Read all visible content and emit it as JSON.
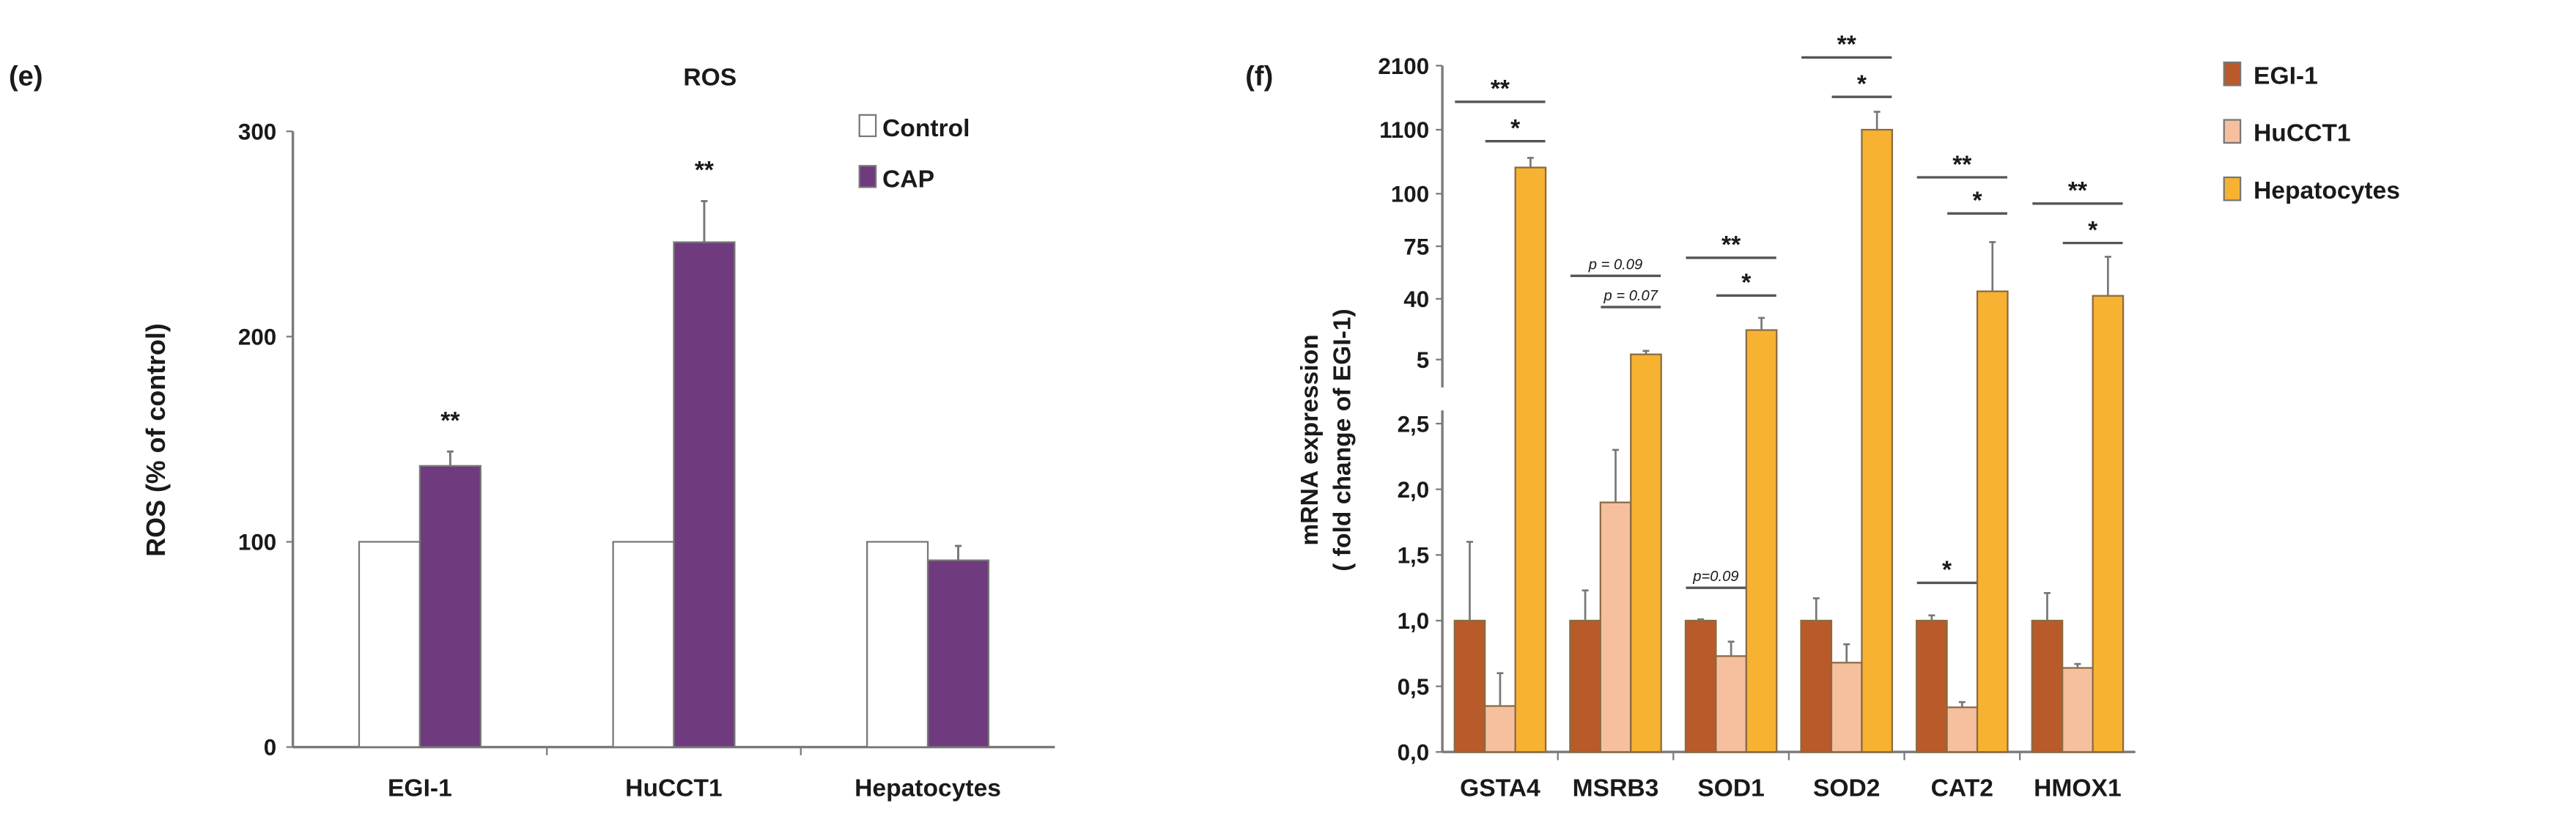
{
  "chart_data": [
    {
      "panel": "(e)",
      "type": "bar",
      "title": "ROS",
      "ylabel": "ROS (% of control)",
      "xlabel": "",
      "ylim": [
        0,
        300
      ],
      "yticks": [
        "0",
        "100",
        "200",
        "300"
      ],
      "categories": [
        "EGI-1",
        "HuCCT1",
        "Hepatocytes"
      ],
      "legend_position": "top-right",
      "series": [
        {
          "name": "Control",
          "color": "#ffffff",
          "values": [
            100,
            100,
            100
          ],
          "errors": [
            0,
            0,
            0
          ]
        },
        {
          "name": "CAP",
          "color": "#6f3a7e",
          "values": [
            137,
            246,
            91
          ],
          "errors": [
            7,
            20,
            7
          ]
        }
      ],
      "annotations": [
        "**",
        "**",
        ""
      ]
    },
    {
      "panel": "(f)",
      "type": "bar",
      "title": "",
      "ylabel": "mRNA expression",
      "ylabel2": "( fold change of EGI-1)",
      "xlabel": "",
      "axis_break": true,
      "yticks_lower": [
        "0,0",
        "0,5",
        "1,0",
        "1,5",
        "2,0",
        "2,5"
      ],
      "yticks_upper": [
        "5",
        "40",
        "75",
        "100",
        "1100",
        "2100"
      ],
      "categories": [
        "GSTA4",
        "MSRB3",
        "SOD1",
        "SOD2",
        "CAT2",
        "HMOX1"
      ],
      "legend_position": "top-right",
      "series": [
        {
          "name": "EGI-1",
          "color": "#b95a2a",
          "values": [
            1.0,
            1.0,
            1.0,
            1.0,
            1.0,
            1.0
          ],
          "errors": [
            0.6,
            0.23,
            0.01,
            0.17,
            0.04,
            0.21
          ]
        },
        {
          "name": "HuCCT1",
          "color": "#f6c09f",
          "values": [
            0.35,
            1.9,
            0.73,
            0.68,
            0.34,
            0.64
          ],
          "errors": [
            0.25,
            0.4,
            0.11,
            0.14,
            0.04,
            0.03
          ]
        },
        {
          "name": "Hepatocytes",
          "color": "#f7b232",
          "values": [
            510,
            8,
            22,
            1100,
            45,
            42
          ],
          "errors": [
            150,
            2,
            7,
            280,
            32,
            26
          ]
        }
      ],
      "significance": [
        {
          "category": "GSTA4",
          "label": "**",
          "pair": "EGI-1 vs Hepatocytes"
        },
        {
          "category": "GSTA4",
          "label": "*",
          "pair": "HuCCT1 vs Hepatocytes"
        },
        {
          "category": "MSRB3",
          "label": "p = 0.09",
          "pair": "EGI-1 vs Hepatocytes"
        },
        {
          "category": "MSRB3",
          "label": "p = 0.07",
          "pair": "HuCCT1 vs Hepatocytes"
        },
        {
          "category": "SOD1",
          "label": "**",
          "pair": "EGI-1 vs Hepatocytes"
        },
        {
          "category": "SOD1",
          "label": "*",
          "pair": "HuCCT1 vs Hepatocytes"
        },
        {
          "category": "SOD1",
          "label": "p=0.09",
          "pair": "EGI-1 vs HuCCT1"
        },
        {
          "category": "SOD2",
          "label": "**",
          "pair": "EGI-1 vs Hepatocytes"
        },
        {
          "category": "SOD2",
          "label": "*",
          "pair": "HuCCT1 vs Hepatocytes"
        },
        {
          "category": "CAT2",
          "label": "**",
          "pair": "EGI-1 vs Hepatocytes"
        },
        {
          "category": "CAT2",
          "label": "*",
          "pair": "HuCCT1 vs Hepatocytes"
        },
        {
          "category": "CAT2",
          "label": "*",
          "pair": "EGI-1 vs HuCCT1"
        },
        {
          "category": "HMOX1",
          "label": "**",
          "pair": "EGI-1 vs Hepatocytes"
        },
        {
          "category": "HMOX1",
          "label": "*",
          "pair": "HuCCT1 vs Hepatocytes"
        }
      ]
    }
  ]
}
